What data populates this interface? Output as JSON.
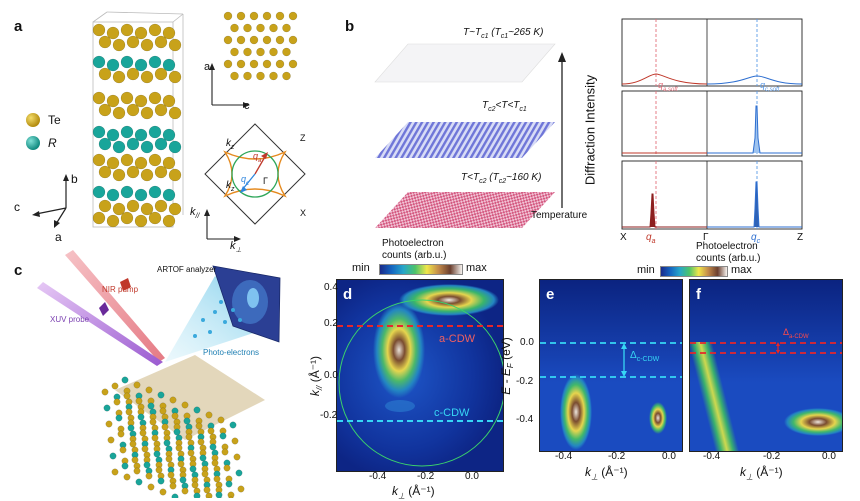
{
  "panels": {
    "a": {
      "letter": "a",
      "legend": [
        {
          "label": "Te",
          "color": "#c8a21a"
        },
        {
          "label": "R",
          "color": "#19a59a"
        }
      ],
      "axes3d": {
        "b": "b",
        "c": "c",
        "a": "a"
      },
      "lattice_axes": {
        "a": "a",
        "c": "c"
      },
      "bz": {
        "k_z": "k",
        "k_z_sub": "z",
        "Z_top": "Z",
        "Z_left": "Z",
        "Gamma": "Γ",
        "X": "X",
        "q_a": "q",
        "q_a_sub": "a",
        "q_c": "q",
        "q_c_sub": "c"
      },
      "k_axes": {
        "k_par": "k",
        "k_par_sub": "//",
        "k_perp": "k",
        "k_perp_sub": "⊥"
      }
    },
    "b": {
      "letter": "b",
      "temps": [
        {
          "pre": "T~T",
          "sub": "c1",
          "post": " (T",
          "sub2": "c1",
          "post2": "~265 K)"
        },
        {
          "pre": "T",
          "sub": "c2",
          "post": "<T<T",
          "sub2": "c1",
          "post2": ""
        },
        {
          "pre": "T<T",
          "sub": "c2",
          "post": " (T",
          "sub2": "c2",
          "post2": "~160 K)"
        }
      ],
      "temperature_label": "Temperature",
      "ylabel": "Diffraction Intensity",
      "xticks": [
        "X",
        "Γ",
        "Z"
      ],
      "q_labels": {
        "qa_soft": "q",
        "qa_soft_sub": "a,soft",
        "qc_soft": "q",
        "qc_soft_sub": "c,soft",
        "qa": "q",
        "qa_sub": "a",
        "qc": "q",
        "qc_sub": "c"
      },
      "colors": {
        "a": "#c0392b",
        "c": "#2e6fd0"
      }
    },
    "c": {
      "letter": "c",
      "labels": {
        "nir": "NIR pump",
        "xuv": "XUV probe",
        "artof": "ARTOF analyzer",
        "photo": "Photo-electrons"
      }
    },
    "colorbar_top": {
      "title_1": "Photoelectron",
      "title_2": "counts (arb.u.)",
      "min": "min",
      "max": "max"
    },
    "colorbar_right": {
      "title_1": "Photoelectron",
      "title_2": "counts (arb.u.)",
      "min": "min",
      "max": "max"
    },
    "d": {
      "letter": "d",
      "ylabel": "k",
      "ylabel_sub": "//",
      "ylabel_unit": " (Å⁻¹)",
      "xlabel": "k",
      "xlabel_sub": "⊥",
      "xlabel_unit": " (Å⁻¹)",
      "yticks": [
        "0.4",
        "0.2",
        "0.0",
        "-0.2"
      ],
      "xticks": [
        "-0.4",
        "-0.2",
        "0.0"
      ],
      "a_cdw": "a-CDW",
      "c_cdw": "c-CDW"
    },
    "e": {
      "letter": "e",
      "ylabel": "E - E",
      "ylabel_sub": "F",
      "ylabel_unit": " (eV)",
      "xlabel": "k",
      "xlabel_sub": "⊥",
      "xlabel_unit": " (Å⁻¹)",
      "yticks": [
        "0.0",
        "-0.2",
        "-0.4"
      ],
      "xticks": [
        "-0.4",
        "-0.2",
        "0.0"
      ],
      "delta": "Δ",
      "delta_sub": "c-CDW"
    },
    "f": {
      "letter": "f",
      "xlabel": "k",
      "xlabel_sub": "⊥",
      "xlabel_unit": " (Å⁻¹)",
      "xticks": [
        "-0.4",
        "-0.2",
        "0.0"
      ],
      "delta": "Δ",
      "delta_sub": "a-CDW"
    }
  }
}
